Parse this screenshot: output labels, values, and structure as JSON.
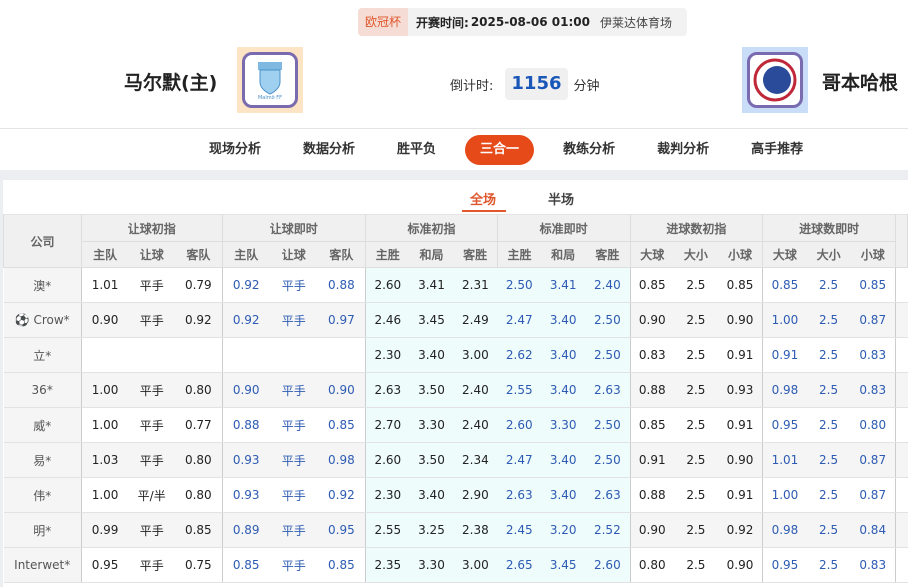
{
  "match": {
    "league": "欧冠杯",
    "kickoff_label": "开赛时间:",
    "kickoff_time": "2025-08-06 01:00",
    "venue": "伊莱达体育场",
    "home_team": "马尔默(主)",
    "away_team": "哥本哈根",
    "countdown_label": "倒计时:",
    "countdown_value": "1156",
    "countdown_unit": "分钟"
  },
  "nav": {
    "items": [
      "现场分析",
      "数据分析",
      "胜平负",
      "三合一",
      "教练分析",
      "裁判分析",
      "高手推荐"
    ],
    "active": "三合一"
  },
  "subtabs": {
    "items": [
      "全场",
      "半场"
    ],
    "active": "全场"
  },
  "table": {
    "company_header": "公司",
    "groups": [
      "让球初指",
      "让球即时",
      "标准初指",
      "标准即时",
      "进球数初指",
      "进球数即时"
    ],
    "subheaders": [
      [
        "主队",
        "让球",
        "客队"
      ],
      [
        "主队",
        "让球",
        "客队"
      ],
      [
        "主胜",
        "和局",
        "客胜"
      ],
      [
        "主胜",
        "和局",
        "客胜"
      ],
      [
        "大球",
        "大小",
        "小球"
      ],
      [
        "大球",
        "大小",
        "小球"
      ]
    ],
    "rows": [
      {
        "company": "澳*",
        "icon": "",
        "values": [
          "1.01",
          "平手",
          "0.79",
          "0.92",
          "平手",
          "0.88",
          "2.60",
          "3.41",
          "2.31",
          "2.50",
          "3.41",
          "2.40",
          "0.85",
          "2.5",
          "0.85",
          "0.85",
          "2.5",
          "0.85"
        ]
      },
      {
        "company": "Crow*",
        "icon": "soccer-ball-icon",
        "values": [
          "0.90",
          "平手",
          "0.92",
          "0.92",
          "平手",
          "0.97",
          "2.46",
          "3.45",
          "2.49",
          "2.47",
          "3.40",
          "2.50",
          "0.90",
          "2.5",
          "0.90",
          "1.00",
          "2.5",
          "0.87"
        ]
      },
      {
        "company": "立*",
        "icon": "",
        "values": [
          "",
          "",
          "",
          "",
          "",
          "",
          "2.30",
          "3.40",
          "3.00",
          "2.62",
          "3.40",
          "2.50",
          "0.83",
          "2.5",
          "0.91",
          "0.91",
          "2.5",
          "0.83"
        ]
      },
      {
        "company": "36*",
        "icon": "",
        "values": [
          "1.00",
          "平手",
          "0.80",
          "0.90",
          "平手",
          "0.90",
          "2.63",
          "3.50",
          "2.40",
          "2.55",
          "3.40",
          "2.63",
          "0.88",
          "2.5",
          "0.93",
          "0.98",
          "2.5",
          "0.83"
        ]
      },
      {
        "company": "威*",
        "icon": "",
        "values": [
          "1.00",
          "平手",
          "0.77",
          "0.88",
          "平手",
          "0.85",
          "2.70",
          "3.30",
          "2.40",
          "2.60",
          "3.30",
          "2.50",
          "0.85",
          "2.5",
          "0.91",
          "0.95",
          "2.5",
          "0.80"
        ]
      },
      {
        "company": "易*",
        "icon": "",
        "values": [
          "1.03",
          "平手",
          "0.80",
          "0.93",
          "平手",
          "0.98",
          "2.60",
          "3.50",
          "2.34",
          "2.47",
          "3.40",
          "2.50",
          "0.91",
          "2.5",
          "0.90",
          "1.01",
          "2.5",
          "0.87"
        ]
      },
      {
        "company": "伟*",
        "icon": "",
        "values": [
          "1.00",
          "平/半",
          "0.80",
          "0.93",
          "平手",
          "0.92",
          "2.30",
          "3.40",
          "2.90",
          "2.63",
          "3.40",
          "2.63",
          "0.88",
          "2.5",
          "0.91",
          "1.00",
          "2.5",
          "0.87"
        ]
      },
      {
        "company": "明*",
        "icon": "",
        "values": [
          "0.99",
          "平手",
          "0.85",
          "0.89",
          "平手",
          "0.95",
          "2.55",
          "3.25",
          "2.38",
          "2.45",
          "3.20",
          "2.52",
          "0.90",
          "2.5",
          "0.92",
          "0.98",
          "2.5",
          "0.84"
        ]
      },
      {
        "company": "Interwet*",
        "icon": "",
        "values": [
          "0.95",
          "平手",
          "0.75",
          "0.85",
          "平手",
          "0.85",
          "2.35",
          "3.30",
          "3.00",
          "2.65",
          "3.45",
          "2.60",
          "0.80",
          "2.5",
          "0.90",
          "0.95",
          "2.5",
          "0.83"
        ]
      }
    ]
  },
  "colors": {
    "accent": "#e64a19",
    "live_odds": "#2d5bb3",
    "countdown": "#1a57b8",
    "standard_bg": "#effcfc"
  }
}
